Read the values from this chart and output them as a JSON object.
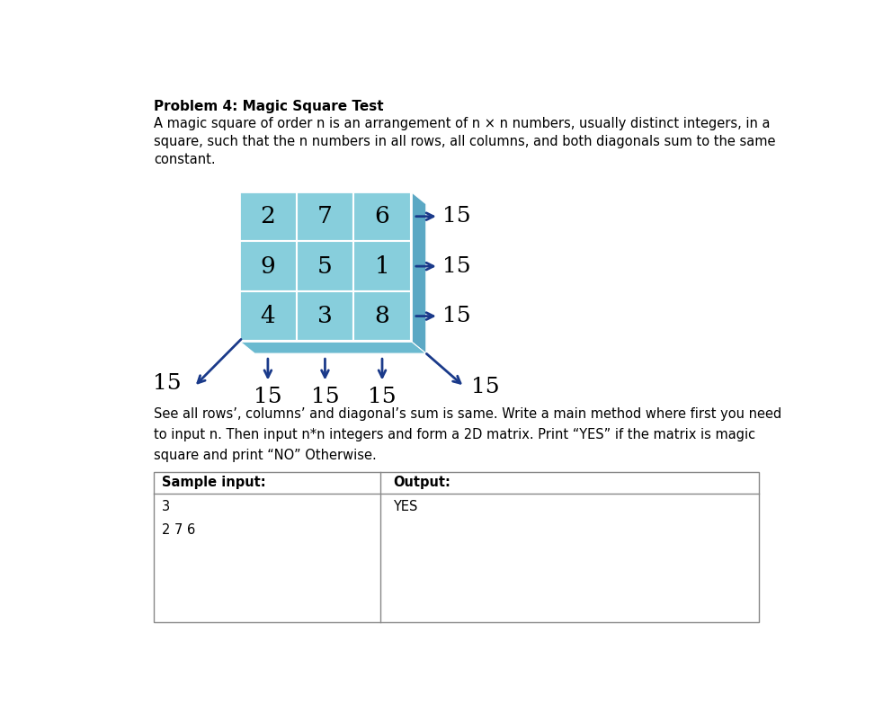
{
  "title": "Problem 4: Magic Square Test",
  "description1": "A magic square of order n is an arrangement of n × n numbers, usually distinct integers, in a",
  "description2": "square, such that the n numbers in all rows, all columns, and both diagonals sum to the same",
  "description3": "constant.",
  "matrix": [
    [
      2,
      7,
      6
    ],
    [
      9,
      5,
      1
    ],
    [
      4,
      3,
      8
    ]
  ],
  "row_sums": [
    15,
    15,
    15
  ],
  "col_sums": [
    15,
    15,
    15
  ],
  "diag1_sum": 15,
  "diag2_sum": 15,
  "cell_color": "#87CEDC",
  "side_color": "#5BA8C4",
  "bottom_color": "#6BBAD0",
  "grid_color": "#FFFFFF",
  "arrow_color": "#1a3a8a",
  "text_color": "#000000",
  "body_text": "See all rows’, columns’ and diagonal’s sum is same. Write a main method where first you need",
  "body_text2": "to input n. Then input n*n integers and form a 2D matrix. Print “YES” if the matrix is magic",
  "body_text3": "square and print “NO” Otherwise.",
  "sample_input_label": "Sample input:",
  "output_label": "Output:",
  "sample_input_lines": [
    "3",
    "2 7 6"
  ],
  "output_lines": [
    "YES"
  ],
  "bg_color": "#FFFFFF",
  "font_size_title": 11,
  "font_size_body": 10.5,
  "font_size_matrix": 19,
  "font_size_sums": 18
}
